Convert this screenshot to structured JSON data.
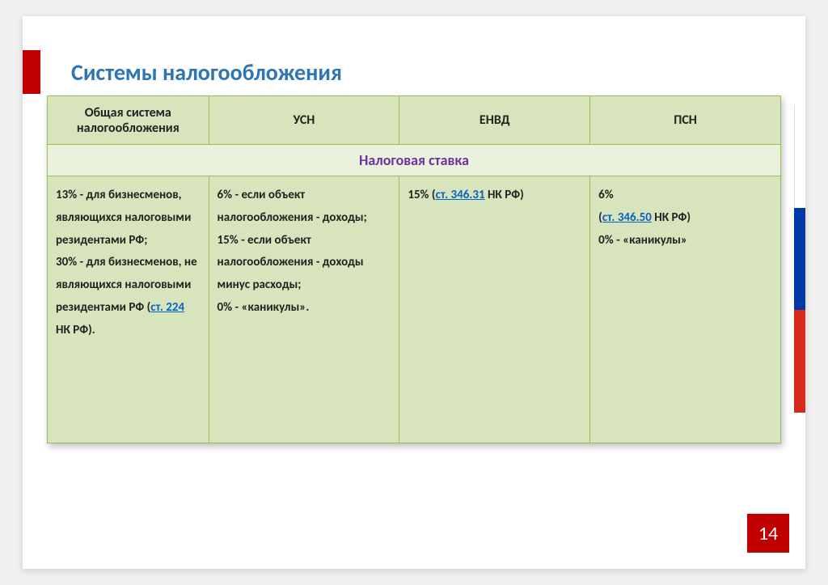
{
  "title": "Системы  налогообложения",
  "page_number": "14",
  "colors": {
    "title_color": "#2e75b6",
    "accent_red": "#c00000",
    "header_bg": "#d8e4bc",
    "subheader_bg": "#eaf1dd",
    "subheader_color": "#7030a0",
    "cell_bg": "#d8e4bc",
    "border_color": "#9bbb59",
    "link_color": "#0563c1",
    "flag_white": "#ffffff",
    "flag_blue": "#0039a6",
    "flag_red": "#d52b1e"
  },
  "table": {
    "column_widths_pct": [
      22,
      26,
      26,
      26
    ],
    "headers": [
      "Общая система налогообложения",
      "УСН",
      "ЕНВД",
      "ПСН"
    ],
    "subheader": "Налоговая ставка",
    "rows": [
      {
        "col0": {
          "pre": "13% - для бизнесменов, являющихся налоговыми резидентами РФ;\n30% - для бизнесменов, не являющихся налоговыми резидентами РФ (",
          "link": "ст. 224",
          "post": " НК РФ)."
        },
        "col1": {
          "text": "6% - если объект налогообложения - доходы;\n15% - если объект налогообложения - доходы минус расходы;\n0% - «каникулы»."
        },
        "col2": {
          "pre": "15% (",
          "link": "ст. 346.31",
          "post": " НК РФ)"
        },
        "col3": {
          "pre": "6%\n (",
          "link": "ст. 346.50",
          "post": " НК РФ)\n 0% - «каникулы»"
        }
      }
    ]
  }
}
